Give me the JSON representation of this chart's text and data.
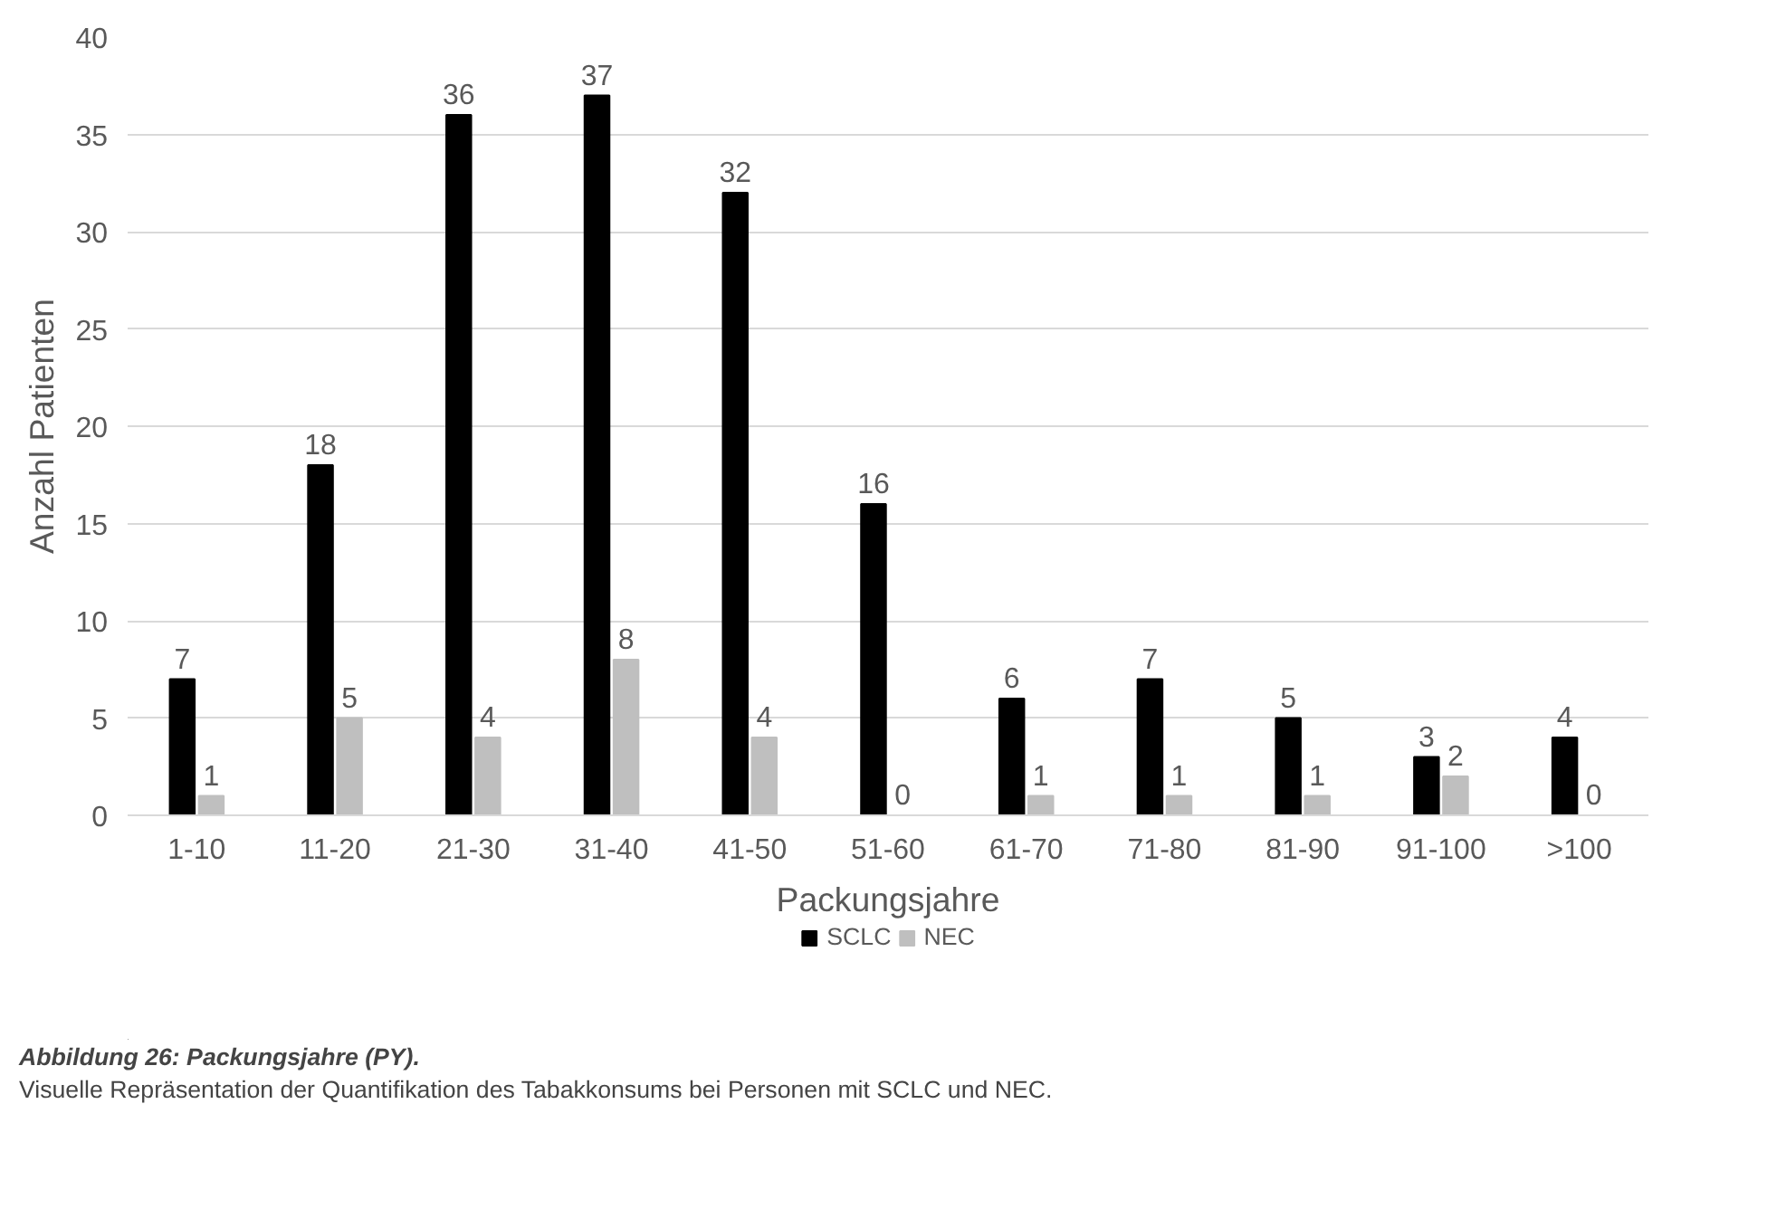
{
  "chart_data": {
    "type": "bar",
    "categories": [
      "1-10",
      "11-20",
      "21-30",
      "31-40",
      "41-50",
      "51-60",
      "61-70",
      "71-80",
      "81-90",
      "91-100",
      ">100"
    ],
    "series": [
      {
        "name": "SCLC",
        "color": "#000000",
        "values": [
          7,
          18,
          36,
          37,
          32,
          16,
          6,
          7,
          5,
          3,
          4
        ]
      },
      {
        "name": "NEC",
        "color": "#bfbfbf",
        "values": [
          1,
          5,
          4,
          8,
          4,
          0,
          1,
          1,
          1,
          2,
          0
        ]
      }
    ],
    "xlabel": "Packungsjahre",
    "ylabel": "Anzahl Patienten",
    "ylim": [
      0,
      40
    ],
    "yticks": [
      0,
      5,
      10,
      15,
      20,
      25,
      30,
      35,
      40
    ],
    "grid": "y",
    "legend": "bottom",
    "data_labels": true,
    "annotations": [
      "Abbildung 26: Packungsjahre (PY).",
      "Visuelle Repräsentation der Quantifikation des Tabakkonsums bei Personen mit SCLC und NEC."
    ]
  }
}
